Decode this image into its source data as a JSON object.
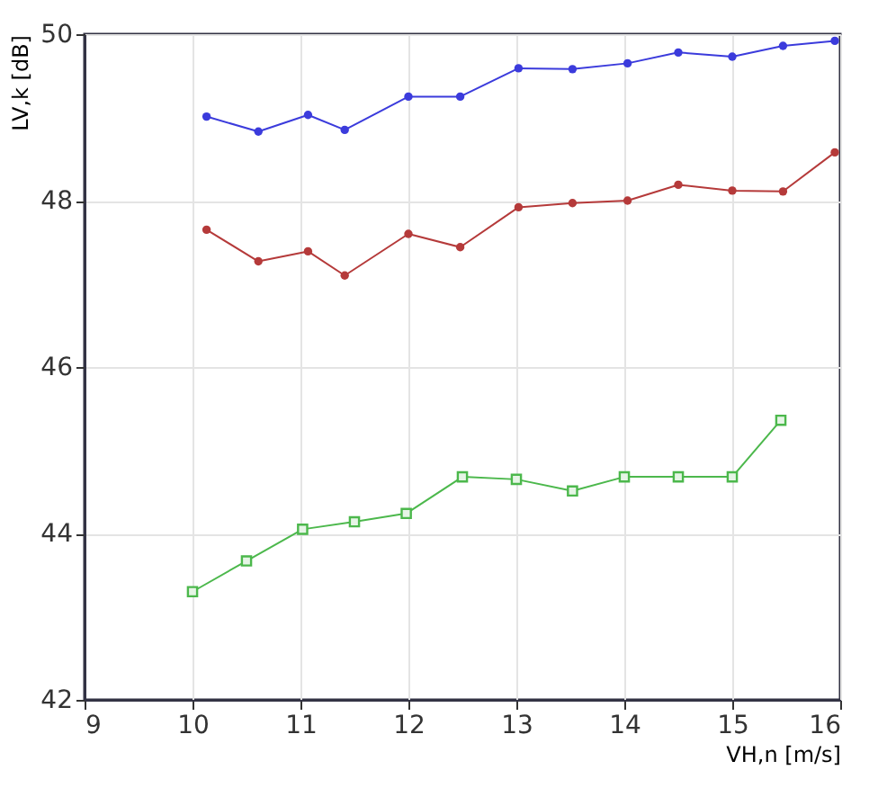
{
  "chart_data": {
    "type": "line",
    "xlabel": "VH,n [m/s]",
    "ylabel": "LV,k [dB]",
    "xlim": [
      9,
      16
    ],
    "ylim": [
      42,
      50
    ],
    "xticks": [
      9,
      10,
      11,
      12,
      13,
      14,
      15,
      16
    ],
    "yticks": [
      42,
      44,
      46,
      48,
      50
    ],
    "grid": true,
    "line_style": "solid",
    "series": [
      {
        "color": "#3b3bdc",
        "marker": "circle",
        "x": [
          10.13,
          10.61,
          11.07,
          11.41,
          12.0,
          12.48,
          13.02,
          13.52,
          14.03,
          14.5,
          15.0,
          15.47,
          15.95
        ],
        "values": [
          49.01,
          48.83,
          49.03,
          48.85,
          49.25,
          49.25,
          49.59,
          49.58,
          49.65,
          49.78,
          49.73,
          49.86,
          49.92
        ]
      },
      {
        "color": "#b53a3a",
        "marker": "circle",
        "x": [
          10.13,
          10.61,
          11.07,
          11.41,
          12.0,
          12.48,
          13.02,
          13.52,
          14.03,
          14.5,
          15.0,
          15.47,
          15.95
        ],
        "values": [
          47.65,
          47.27,
          47.39,
          47.1,
          47.6,
          47.44,
          47.92,
          47.97,
          48.0,
          48.19,
          48.12,
          48.11,
          48.58
        ]
      },
      {
        "color": "#4cb84c",
        "marker": "square",
        "x": [
          10.0,
          10.5,
          11.02,
          11.5,
          11.98,
          12.5,
          13.0,
          13.52,
          14.0,
          14.5,
          15.0,
          15.45
        ],
        "values": [
          43.3,
          43.67,
          44.05,
          44.14,
          44.24,
          44.68,
          44.65,
          44.51,
          44.68,
          44.68,
          44.68,
          45.36
        ]
      }
    ]
  }
}
